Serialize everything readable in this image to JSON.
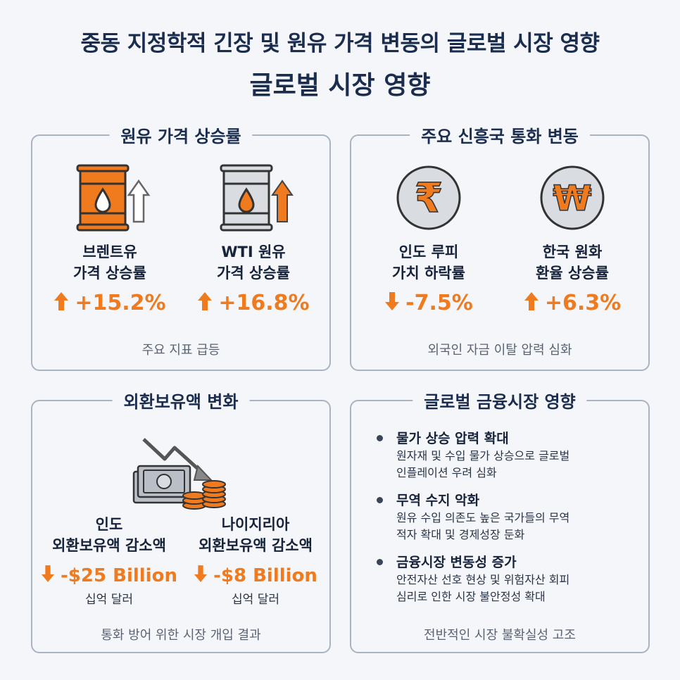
{
  "header": {
    "title_line1": "중동 지정학적 긴장 및 원유 가격 변동의 글로벌 시장 영향",
    "title_line2": "글로벌 시장 영향"
  },
  "oil_panel": {
    "title": "원유 가격 상승률",
    "brent": {
      "label_line1": "브렌트유",
      "label_line2": "가격 상승률",
      "value": "+15.2%",
      "direction": "up"
    },
    "wti": {
      "label_line1": "WTI 원유",
      "label_line2": "가격 상승률",
      "value": "+16.8%",
      "direction": "up"
    },
    "footer": "주요 지표 급등"
  },
  "currency_panel": {
    "title": "주요 신흥국 통화 변동",
    "inr": {
      "symbol": "₹",
      "label_line1": "인도 루피",
      "label_line2": "가치 하락률",
      "value": "-7.5%",
      "direction": "down"
    },
    "krw": {
      "symbol": "₩",
      "label_line1": "한국 원화",
      "label_line2": "환율 상승률",
      "value": "+6.3%",
      "direction": "up"
    },
    "footer": "외국인 자금 이탈 압력 심화"
  },
  "reserves_panel": {
    "title": "외환보유액 변화",
    "india": {
      "label_line1": "인도",
      "label_line2": "외환보유액 감소액",
      "value": "-$25 Billion",
      "unit": "십억 달러",
      "direction": "down"
    },
    "nigeria": {
      "label_line1": "나이지리아",
      "label_line2": "외환보유액 감소액",
      "value": "-$8 Billion",
      "unit": "십억 달러",
      "direction": "down"
    },
    "footer": "통화 방어 위한 시장 개입 결과"
  },
  "impact_panel": {
    "title": "글로벌 금융시장 영향",
    "items": [
      {
        "head": "물가 상승 압력 확대",
        "line1": "원자재 및 수입 물가 상승으로 글로벌",
        "line2": "인플레이션 우려 심화"
      },
      {
        "head": "무역 수지 악화",
        "line1": "원유 수입 의존도 높은 국가들의 무역",
        "line2": "적자 확대 및 경제성장 둔화"
      },
      {
        "head": "금융시장 변동성 증가",
        "line1": "안전자산 선호 현상 및 위험자산 회피",
        "line2": "심리로 인한 시장 불안정성 확대"
      }
    ],
    "footer": "전반적인 시장 불확실성 고조"
  },
  "colors": {
    "accent": "#f07a1e",
    "navy": "#1b2d4f",
    "border": "#aab3c0",
    "background": "#f4f6f9"
  },
  "icons": [
    "oil-barrel-orange-icon",
    "oil-barrel-gray-icon",
    "rupee-coin-icon",
    "won-coin-icon",
    "falling-money-icon",
    "up-arrow-icon",
    "down-arrow-icon"
  ]
}
